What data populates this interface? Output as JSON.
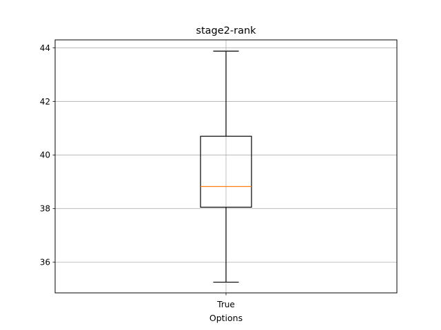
{
  "chart_data": {
    "type": "boxplot",
    "title": "stage2-rank",
    "xlabel": "Options",
    "ylabel": "",
    "categories": [
      "True"
    ],
    "boxes": [
      {
        "category": "True",
        "whisker_low": 35.25,
        "q1": 38.05,
        "median": 38.82,
        "q3": 40.7,
        "whisker_high": 43.88
      }
    ],
    "ylim": [
      34.85,
      44.3
    ],
    "yticks": [
      36,
      38,
      40,
      42,
      44
    ],
    "grid": true,
    "colors": {
      "box": "#000000",
      "median": "#ff7f0e",
      "grid": "#b0b0b0",
      "axes": "#000000"
    }
  }
}
